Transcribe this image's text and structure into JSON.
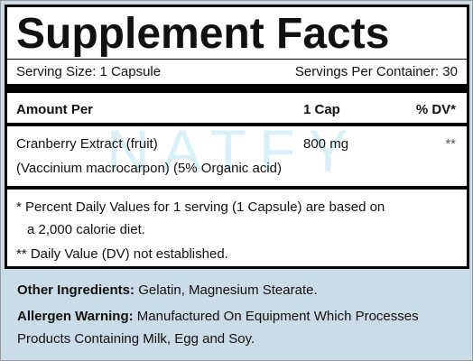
{
  "header": {
    "title": "Supplement Facts",
    "serving_size": "Serving Size: 1 Capsule",
    "servings_per_container": "Servings Per Container: 30"
  },
  "table": {
    "columns": [
      "Amount Per",
      "1 Cap",
      "% DV*"
    ],
    "rows": [
      [
        "Cranberry Extract (fruit)",
        "800 mg",
        "**"
      ]
    ],
    "row_note": "(Vaccinium macrocarpon) (5% Organic acid)"
  },
  "footnotes": [
    "* Percent Daily Values for 1 serving (1 Capsule) are based on",
    "a 2,000 calorie diet.",
    "** Daily Value (DV) not established."
  ],
  "other_ingredients": {
    "label": "Other Ingredients:",
    "text": "Gelatin, Magnesium Stearate."
  },
  "allergen_warning": {
    "label": "Allergen Warning:",
    "lines": [
      "Manufactured On Equipment Which Processes",
      "Products Containing Milk, Egg and Soy."
    ]
  },
  "watermark": "NATFY"
}
